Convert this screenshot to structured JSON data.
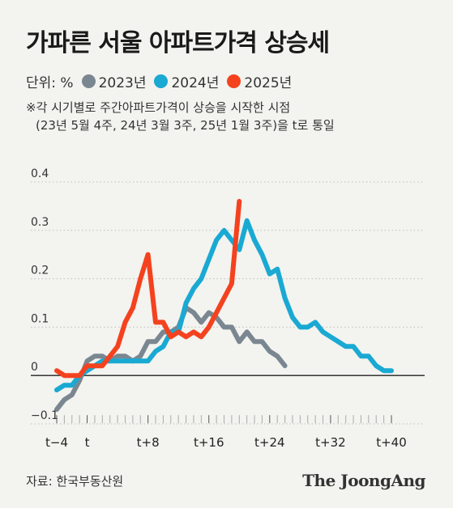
{
  "title": "가파른 서울 아파트가격 상승세",
  "legend": {
    "unit": "단위: %",
    "items": [
      {
        "label": "2023년",
        "color": "#7a8791"
      },
      {
        "label": "2024년",
        "color": "#19a9d3"
      },
      {
        "label": "2025년",
        "color": "#f4421f"
      }
    ]
  },
  "note": {
    "line1": "※각 시기별로 주간아파트가격이 상승을 시작한 시점",
    "line2": "(23년 5월 4주, 24년 3월 3주, 25년 1월 3주)을 t로 통일"
  },
  "source": "자료: 한국부동산원",
  "logo": "The JoongAng",
  "chart_data": {
    "type": "line",
    "title": "",
    "xlabel": "",
    "ylabel": "",
    "ylim": [
      -0.1,
      0.4
    ],
    "xlim": [
      -4,
      41
    ],
    "y_ticks": [
      "0.4",
      "0.3",
      "0.2",
      "0.1",
      "0",
      "−0.1"
    ],
    "y_tick_values": [
      0.4,
      0.3,
      0.2,
      0.1,
      0,
      -0.1
    ],
    "x_ticks": [
      "t−4",
      "t",
      "t+8",
      "t+16",
      "t+24",
      "t+32",
      "t+40"
    ],
    "x_tick_values": [
      -4,
      0,
      8,
      16,
      24,
      32,
      40
    ],
    "grid": true,
    "series": [
      {
        "name": "2023년",
        "color": "#7a8791",
        "x": [
          -4,
          -3,
          -2,
          -1,
          0,
          1,
          2,
          3,
          4,
          5,
          6,
          7,
          8,
          9,
          10,
          11,
          12,
          13,
          14,
          15,
          16,
          17,
          18,
          19,
          20,
          21,
          22,
          23,
          24,
          25,
          26
        ],
        "y": [
          -0.07,
          -0.05,
          -0.04,
          -0.01,
          0.03,
          0.04,
          0.04,
          0.03,
          0.04,
          0.04,
          0.03,
          0.04,
          0.07,
          0.07,
          0.09,
          0.09,
          0.1,
          0.14,
          0.13,
          0.11,
          0.13,
          0.12,
          0.1,
          0.1,
          0.07,
          0.09,
          0.07,
          0.07,
          0.05,
          0.04,
          0.02
        ]
      },
      {
        "name": "2024년",
        "color": "#19a9d3",
        "x": [
          -4,
          -3,
          -2,
          -1,
          0,
          1,
          2,
          3,
          4,
          5,
          6,
          7,
          8,
          9,
          10,
          11,
          12,
          13,
          14,
          15,
          16,
          17,
          18,
          19,
          20,
          21,
          22,
          23,
          24,
          25,
          26,
          27,
          28,
          29,
          30,
          31,
          32,
          33,
          34,
          35,
          36,
          37,
          38,
          39,
          40
        ],
        "y": [
          -0.03,
          -0.02,
          -0.02,
          0.0,
          0.01,
          0.02,
          0.03,
          0.03,
          0.03,
          0.03,
          0.03,
          0.03,
          0.03,
          0.05,
          0.06,
          0.09,
          0.09,
          0.15,
          0.18,
          0.2,
          0.24,
          0.28,
          0.3,
          0.28,
          0.26,
          0.32,
          0.28,
          0.25,
          0.21,
          0.22,
          0.16,
          0.12,
          0.1,
          0.1,
          0.11,
          0.09,
          0.08,
          0.07,
          0.06,
          0.06,
          0.04,
          0.04,
          0.02,
          0.01,
          0.01
        ]
      },
      {
        "name": "2025년",
        "color": "#f4421f",
        "x": [
          -4,
          -3,
          -2,
          -1,
          0,
          1,
          2,
          3,
          4,
          5,
          6,
          7,
          8,
          9,
          10,
          11,
          12,
          13,
          14,
          15,
          16,
          17,
          18,
          19,
          20
        ],
        "y": [
          0.01,
          0.0,
          0.0,
          0.0,
          0.02,
          0.02,
          0.02,
          0.04,
          0.06,
          0.11,
          0.14,
          0.2,
          0.25,
          0.11,
          0.11,
          0.08,
          0.09,
          0.08,
          0.09,
          0.08,
          0.1,
          0.13,
          0.16,
          0.19,
          0.36
        ]
      }
    ]
  }
}
